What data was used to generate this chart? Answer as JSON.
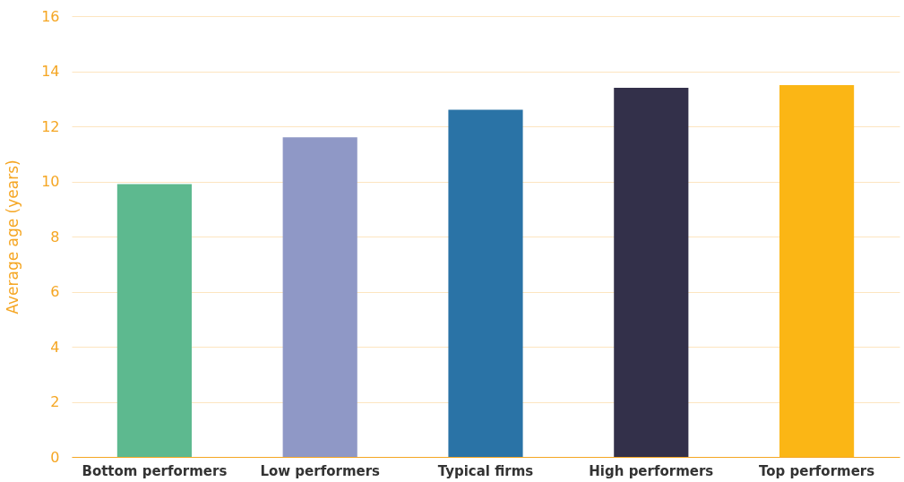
{
  "chart_data": {
    "type": "bar",
    "ylabel": "Average age (years)",
    "categories": [
      "Bottom performers",
      "Low performers",
      "Typical firms",
      "High performers",
      "Top performers"
    ],
    "values": [
      9.9,
      11.6,
      12.6,
      13.4,
      13.5
    ],
    "colors": [
      "#5db98f",
      "#8f98c6",
      "#2a73a6",
      "#33304a",
      "#fbb615"
    ],
    "ylim": [
      0,
      16
    ],
    "yticks": [
      0,
      2,
      4,
      6,
      8,
      10,
      12,
      14,
      16
    ],
    "grid": "y"
  }
}
